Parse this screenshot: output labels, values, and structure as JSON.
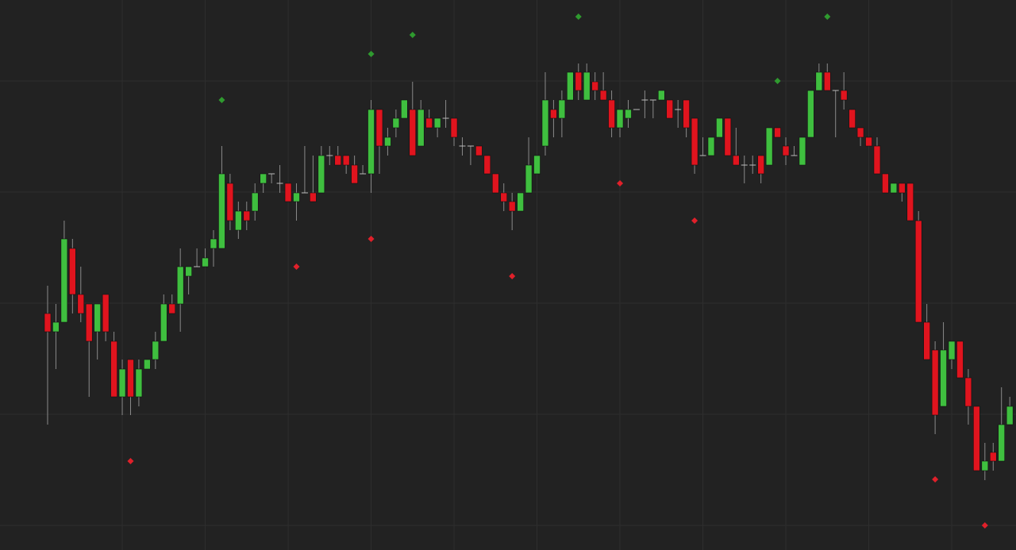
{
  "chart_data": {
    "type": "candlestick",
    "x": [
      0,
      1,
      2,
      3,
      4,
      5,
      6,
      7,
      8,
      9,
      10,
      11,
      12,
      13,
      14,
      15,
      16,
      17,
      18,
      19,
      20,
      21,
      22,
      23,
      24,
      25,
      26,
      27,
      28,
      29,
      30,
      31,
      32,
      33,
      34,
      35,
      36,
      37,
      38,
      39,
      40,
      41,
      42,
      43,
      44,
      45,
      46,
      47,
      48,
      49,
      50,
      51,
      52,
      53,
      54,
      55,
      56,
      57,
      58,
      59,
      60,
      61,
      62,
      63,
      64,
      65,
      66,
      67,
      68,
      69,
      70,
      71,
      72,
      73,
      74,
      75,
      76,
      77,
      78,
      79,
      80,
      81,
      82,
      83,
      84,
      85,
      86,
      87,
      88,
      89,
      90,
      91,
      92,
      93,
      94,
      95,
      96,
      97,
      98,
      99,
      100,
      101,
      102,
      103,
      104,
      105,
      106,
      107,
      108,
      109,
      110,
      111,
      112,
      113,
      114,
      115,
      116
    ],
    "open": [
      298,
      275,
      287,
      380,
      322,
      310,
      275,
      322,
      263,
      193,
      240,
      193,
      228,
      240,
      263,
      310,
      310,
      345,
      357,
      357,
      380,
      380,
      462,
      403,
      427,
      427,
      462,
      474,
      462,
      462,
      439,
      450,
      450,
      450,
      497,
      497,
      497,
      485,
      474,
      474,
      555,
      509,
      532,
      544,
      555,
      509,
      544,
      532,
      544,
      544,
      509,
      509,
      509,
      497,
      474,
      450,
      439,
      427,
      450,
      474,
      509,
      555,
      544,
      567,
      602,
      567,
      590,
      579,
      567,
      532,
      544,
      555,
      567,
      567,
      567,
      567,
      555,
      567,
      544,
      497,
      497,
      520,
      544,
      497,
      485,
      485,
      497,
      485,
      532,
      509,
      497,
      485,
      520,
      579,
      602,
      579,
      579,
      555,
      532,
      520,
      509,
      474,
      450,
      462,
      462,
      415,
      287,
      252,
      181,
      240,
      263,
      217,
      181,
      100,
      123,
      112,
      158
    ],
    "high": [
      333,
      310,
      415,
      392,
      357,
      310,
      310,
      322,
      275,
      240,
      240,
      240,
      240,
      275,
      322,
      322,
      380,
      357,
      380,
      380,
      403,
      509,
      474,
      439,
      439,
      462,
      474,
      474,
      485,
      462,
      462,
      509,
      497,
      509,
      509,
      509,
      497,
      497,
      485,
      567,
      555,
      532,
      555,
      567,
      590,
      567,
      555,
      544,
      567,
      544,
      520,
      509,
      509,
      497,
      474,
      462,
      450,
      450,
      520,
      497,
      602,
      567,
      579,
      602,
      613,
      613,
      602,
      602,
      579,
      555,
      567,
      555,
      579,
      567,
      579,
      567,
      567,
      567,
      544,
      520,
      520,
      544,
      544,
      532,
      497,
      497,
      497,
      532,
      532,
      520,
      509,
      520,
      579,
      613,
      613,
      579,
      602,
      555,
      532,
      520,
      520,
      474,
      462,
      462,
      462,
      427,
      310,
      263,
      287,
      263,
      263,
      228,
      181,
      135,
      135,
      205,
      193
    ],
    "low": [
      158,
      228,
      287,
      298,
      287,
      193,
      240,
      263,
      193,
      170,
      170,
      181,
      228,
      228,
      263,
      298,
      275,
      322,
      357,
      357,
      357,
      380,
      403,
      392,
      403,
      415,
      450,
      462,
      450,
      439,
      415,
      450,
      439,
      450,
      485,
      485,
      474,
      462,
      474,
      450,
      474,
      497,
      520,
      544,
      497,
      509,
      532,
      520,
      532,
      509,
      497,
      485,
      497,
      474,
      450,
      427,
      403,
      427,
      450,
      474,
      497,
      520,
      520,
      567,
      567,
      567,
      567,
      567,
      520,
      520,
      532,
      555,
      544,
      544,
      567,
      544,
      532,
      520,
      474,
      497,
      497,
      520,
      497,
      485,
      462,
      474,
      462,
      485,
      520,
      485,
      497,
      485,
      520,
      579,
      579,
      520,
      555,
      532,
      509,
      509,
      474,
      450,
      450,
      439,
      415,
      287,
      240,
      146,
      181,
      228,
      217,
      158,
      100,
      88,
      100,
      112,
      158
    ],
    "close": [
      275,
      287,
      392,
      322,
      298,
      263,
      310,
      275,
      193,
      228,
      193,
      228,
      240,
      263,
      310,
      298,
      357,
      357,
      357,
      368,
      392,
      474,
      415,
      427,
      415,
      450,
      474,
      474,
      462,
      439,
      450,
      450,
      439,
      497,
      497,
      485,
      485,
      462,
      474,
      555,
      509,
      520,
      544,
      567,
      497,
      555,
      532,
      544,
      544,
      520,
      509,
      509,
      497,
      474,
      450,
      439,
      427,
      450,
      485,
      497,
      567,
      544,
      567,
      602,
      579,
      602,
      579,
      567,
      532,
      555,
      555,
      555,
      567,
      567,
      579,
      544,
      555,
      532,
      485,
      497,
      520,
      544,
      497,
      485,
      485,
      485,
      474,
      532,
      520,
      497,
      497,
      520,
      579,
      602,
      579,
      579,
      567,
      532,
      520,
      509,
      474,
      450,
      462,
      450,
      415,
      287,
      240,
      170,
      252,
      263,
      217,
      181,
      100,
      112,
      112,
      158,
      181
    ],
    "up_color": "#3fbf3f",
    "down_color": "#e0141e",
    "markers": [
      {
        "color": "#2f9a2f",
        "x": [
          21,
          39,
          44,
          64,
          88,
          94
        ],
        "values": [
          567,
          625,
          649,
          672,
          591,
          672
        ]
      },
      {
        "color": "#e0202a",
        "x": [
          10,
          30,
          39,
          56,
          69,
          78,
          107,
          113
        ],
        "values": [
          112,
          357,
          392,
          345,
          462,
          415,
          89,
          31
        ]
      }
    ],
    "xlim": [
      -5.74,
      116.75
    ],
    "ylim": [
      0,
      693
    ],
    "xticks": [
      9,
      19,
      29,
      39,
      49,
      59,
      69,
      79,
      89,
      99,
      109
    ],
    "yticks": [
      31,
      171,
      311,
      451,
      591
    ],
    "grid": true
  }
}
